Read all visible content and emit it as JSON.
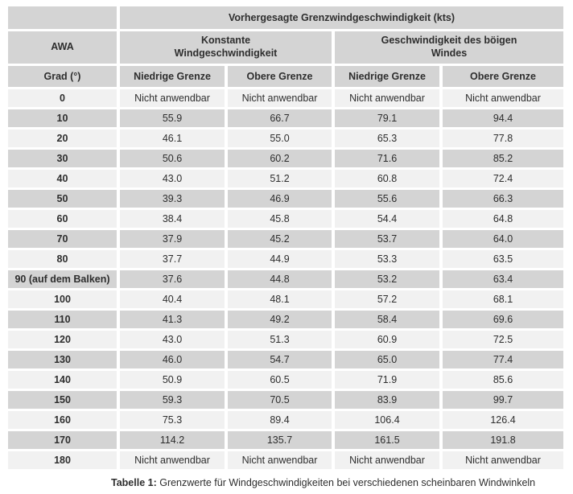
{
  "table": {
    "main_header": "Vorhergesagte Grenzwindgeschwindigkeit (kts)",
    "group_headers": [
      "AWA",
      "Konstante\nWindgeschwindigkeit",
      "Geschwindigkeit des böigen\nWindes"
    ],
    "sub_headers": [
      "Grad (°)",
      "Niedrige Grenze",
      "Obere Grenze",
      "Niedrige Grenze",
      "Obere Grenze"
    ],
    "rows": [
      [
        "0",
        "Nicht anwendbar",
        "Nicht anwendbar",
        "Nicht anwendbar",
        "Nicht anwendbar"
      ],
      [
        "10",
        "55.9",
        "66.7",
        "79.1",
        "94.4"
      ],
      [
        "20",
        "46.1",
        "55.0",
        "65.3",
        "77.8"
      ],
      [
        "30",
        "50.6",
        "60.2",
        "71.6",
        "85.2"
      ],
      [
        "40",
        "43.0",
        "51.2",
        "60.8",
        "72.4"
      ],
      [
        "50",
        "39.3",
        "46.9",
        "55.6",
        "66.3"
      ],
      [
        "60",
        "38.4",
        "45.8",
        "54.4",
        "64.8"
      ],
      [
        "70",
        "37.9",
        "45.2",
        "53.7",
        "64.0"
      ],
      [
        "80",
        "37.7",
        "44.9",
        "53.3",
        "63.5"
      ],
      [
        "90 (auf dem Balken)",
        "37.6",
        "44.8",
        "53.2",
        "63.4"
      ],
      [
        "100",
        "40.4",
        "48.1",
        "57.2",
        "68.1"
      ],
      [
        "110",
        "41.3",
        "49.2",
        "58.4",
        "69.6"
      ],
      [
        "120",
        "43.0",
        "51.3",
        "60.9",
        "72.5"
      ],
      [
        "130",
        "46.0",
        "54.7",
        "65.0",
        "77.4"
      ],
      [
        "140",
        "50.9",
        "60.5",
        "71.9",
        "85.6"
      ],
      [
        "150",
        "59.3",
        "70.5",
        "83.9",
        "99.7"
      ],
      [
        "160",
        "75.3",
        "89.4",
        "106.4",
        "126.4"
      ],
      [
        "170",
        "114.2",
        "135.7",
        "161.5",
        "191.8"
      ],
      [
        "180",
        "Nicht anwendbar",
        "Nicht anwendbar",
        "Nicht anwendbar",
        "Nicht anwendbar"
      ]
    ]
  },
  "caption": {
    "label": "Tabelle 1:",
    "text": "Grenzwerte für Windgeschwindigkeiten bei verschiedenen scheinbaren Windwinkeln"
  },
  "colors": {
    "header_bg": "#d4d4d4",
    "row_light_bg": "#f1f1f1",
    "row_dark_bg": "#d4d4d4",
    "text": "#2e2e2e",
    "gutter": "#ffffff"
  }
}
